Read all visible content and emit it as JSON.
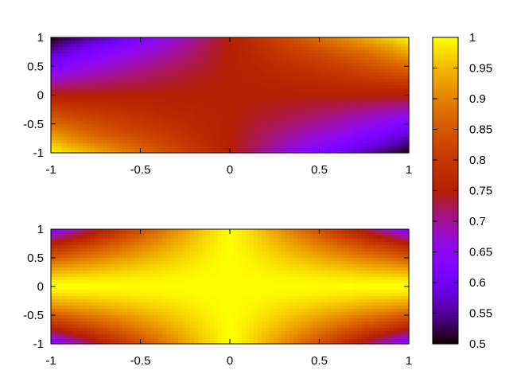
{
  "chart_data": {
    "type": "heatmap",
    "colormap": "gnuplot default palette (black-blue-violet-red-orange-yellow)",
    "panels": [
      {
        "name": "top",
        "x_range": [
          -1,
          1
        ],
        "y_range": [
          -1,
          1
        ],
        "x_ticks": [
          "-1",
          "-0.5",
          "0",
          "0.5",
          "1"
        ],
        "y_ticks": [
          "-1",
          "-0.5",
          "0",
          "0.5",
          "1"
        ],
        "description": "value increases toward top-right and bottom-left corners; minima near top-left and bottom-right corners",
        "sample_values": {
          "top_left": 0.5,
          "top_right": 1.0,
          "bottom_left": 1.0,
          "bottom_right": 0.5,
          "center": 0.8
        }
      },
      {
        "name": "bottom",
        "x_range": [
          -1,
          1
        ],
        "y_range": [
          -1,
          1
        ],
        "x_ticks": [
          "-1",
          "-0.5",
          "0",
          "0.5",
          "1"
        ],
        "y_ticks": [
          "-1",
          "-0.5",
          "0",
          "0.5",
          "1"
        ],
        "description": "high (yellow) across center band, decreasing toward the four corners",
        "sample_values": {
          "center": 1.0,
          "corners": 0.65
        }
      }
    ],
    "colorbar": {
      "range": [
        0.5,
        1
      ],
      "ticks": [
        "1",
        "0.95",
        "0.9",
        "0.85",
        "0.8",
        "0.75",
        "0.7",
        "0.65",
        "0.6",
        "0.55",
        "0.5"
      ]
    }
  }
}
